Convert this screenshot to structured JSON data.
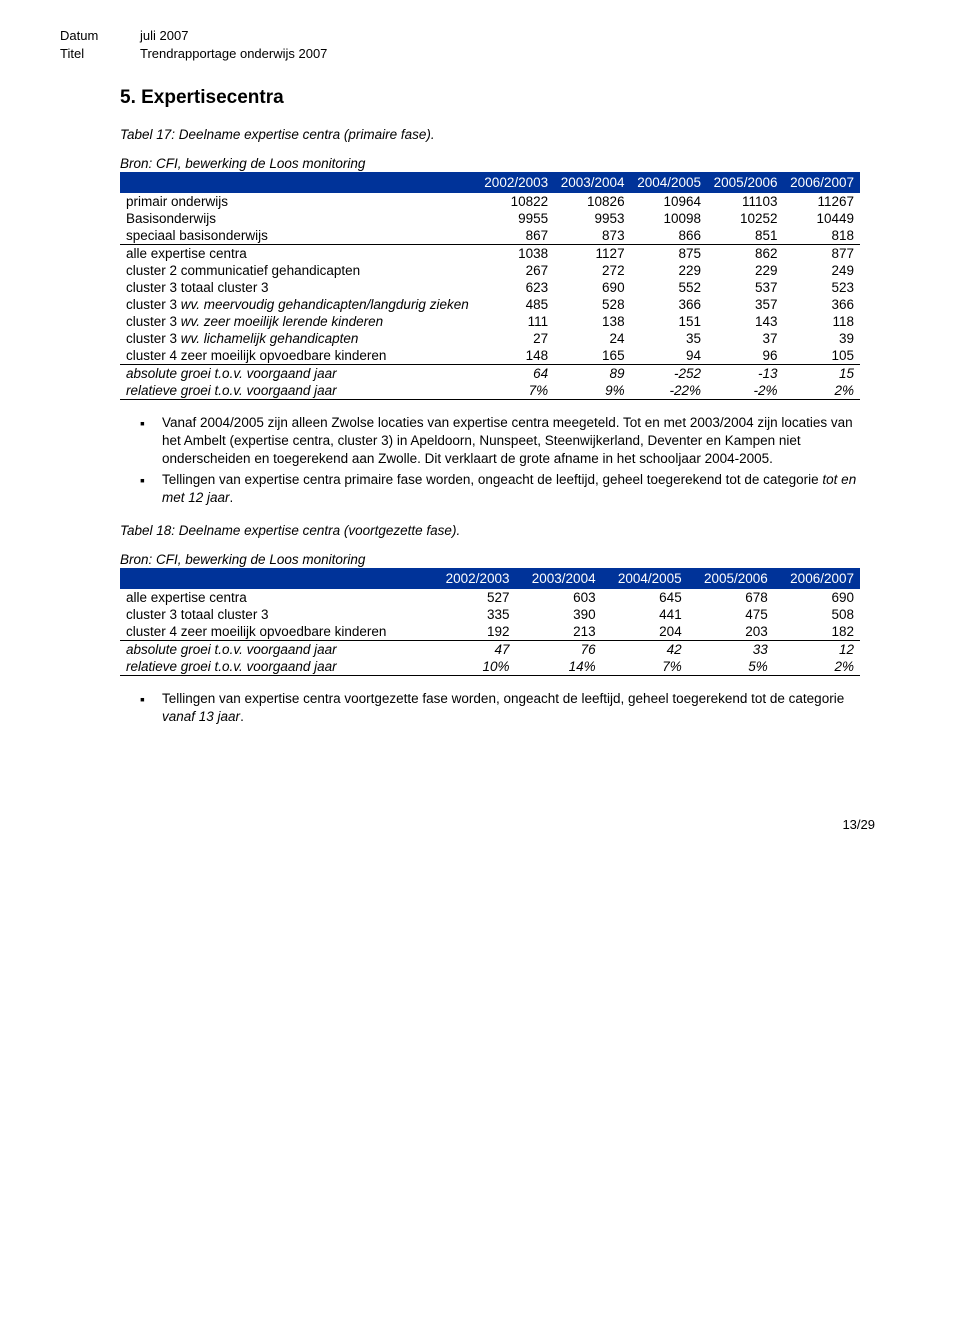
{
  "meta": {
    "datum_label": "Datum",
    "datum_val": "juli 2007",
    "titel_label": "Titel",
    "titel_val": "Trendrapportage onderwijs 2007"
  },
  "section_title": "5.   Expertisecentra",
  "table17": {
    "caption": "Tabel 17: Deelname expertise centra (primaire fase).",
    "source": "Bron: CFI, bewerking de Loos monitoring",
    "columns": [
      "",
      "2002/2003",
      "2003/2004",
      "2004/2005",
      "2005/2006",
      "2006/2007"
    ],
    "rows": [
      {
        "label": "primair onderwijs",
        "c": [
          "10822",
          "10826",
          "10964",
          "11103",
          "11267"
        ]
      },
      {
        "label": "Basisonderwijs",
        "c": [
          "9955",
          "9953",
          "10098",
          "10252",
          "10449"
        ]
      },
      {
        "label": "speciaal basisonderwijs",
        "c": [
          "867",
          "873",
          "866",
          "851",
          "818"
        ]
      },
      {
        "label": "alle expertise centra",
        "c": [
          "1038",
          "1127",
          "875",
          "862",
          "877"
        ],
        "topline": true
      },
      {
        "label": "cluster 2   communicatief gehandicapten",
        "c": [
          "267",
          "272",
          "229",
          "229",
          "249"
        ]
      },
      {
        "label": "cluster 3   totaal cluster 3",
        "c": [
          "623",
          "690",
          "552",
          "537",
          "523"
        ]
      },
      {
        "label": "cluster 3   wv. meervoudig gehandicapten/langdurig zieken",
        "c": [
          "485",
          "528",
          "366",
          "357",
          "366"
        ],
        "italic_parts": true
      },
      {
        "label": "cluster 3   wv. zeer moeilijk lerende kinderen",
        "c": [
          "111",
          "138",
          "151",
          "143",
          "118"
        ],
        "italic_parts": true
      },
      {
        "label": "cluster 3   wv. lichamelijk gehandicapten",
        "c": [
          "27",
          "24",
          "35",
          "37",
          "39"
        ],
        "italic_parts": true
      },
      {
        "label": "cluster 4   zeer moeilijk opvoedbare kinderen",
        "c": [
          "148",
          "165",
          "94",
          "96",
          "105"
        ]
      },
      {
        "label": "absolute groei t.o.v. voorgaand jaar",
        "c": [
          "64",
          "89",
          "-252",
          "-13",
          "15"
        ],
        "italic": true,
        "topline": true
      },
      {
        "label": "relatieve groei t.o.v. voorgaand jaar",
        "c": [
          "7%",
          "9%",
          "-22%",
          "-2%",
          "2%"
        ],
        "italic": true
      }
    ]
  },
  "bullets1": [
    "Vanaf 2004/2005 zijn alleen Zwolse locaties van expertise centra meegeteld. Tot en met 2003/2004 zijn locaties van het Ambelt (expertise centra, cluster 3) in Apeldoorn, Nunspeet, Steenwijkerland, Deventer en Kampen niet onderscheiden en toegerekend aan Zwolle. Dit verklaart de grote afname in het schooljaar 2004-2005.",
    "Tellingen van expertise centra primaire fase worden, ongeacht de leeftijd, geheel toegerekend tot de categorie <span class=\"em\">tot en met 12 jaar</span>."
  ],
  "table18": {
    "caption": "Tabel 18: Deelname expertise centra (voortgezette fase).",
    "source": "Bron: CFI, bewerking de Loos monitoring",
    "columns": [
      "",
      "2002/2003",
      "2003/2004",
      "2004/2005",
      "2005/2006",
      "2006/2007"
    ],
    "rows": [
      {
        "label": "alle expertise centra",
        "c": [
          "527",
          "603",
          "645",
          "678",
          "690"
        ]
      },
      {
        "label": "cluster 3   totaal cluster 3",
        "c": [
          "335",
          "390",
          "441",
          "475",
          "508"
        ]
      },
      {
        "label": "cluster 4   zeer moeilijk opvoedbare kinderen",
        "c": [
          "192",
          "213",
          "204",
          "203",
          "182"
        ]
      },
      {
        "label": "absolute groei t.o.v. voorgaand jaar",
        "c": [
          "47",
          "76",
          "42",
          "33",
          "12"
        ],
        "italic": true,
        "topline": true
      },
      {
        "label": "relatieve groei t.o.v. voorgaand jaar",
        "c": [
          "10%",
          "14%",
          "7%",
          "5%",
          "2%"
        ],
        "italic": true
      }
    ]
  },
  "bullets2": [
    "Tellingen van expertise centra voortgezette fase worden, ongeacht de leeftijd, geheel toegerekend tot de categorie <span class=\"em\">vanaf 13 jaar</span>."
  ],
  "footer": "13/29",
  "style": {
    "header_bg": "#003399",
    "header_fg": "#ffffff"
  }
}
